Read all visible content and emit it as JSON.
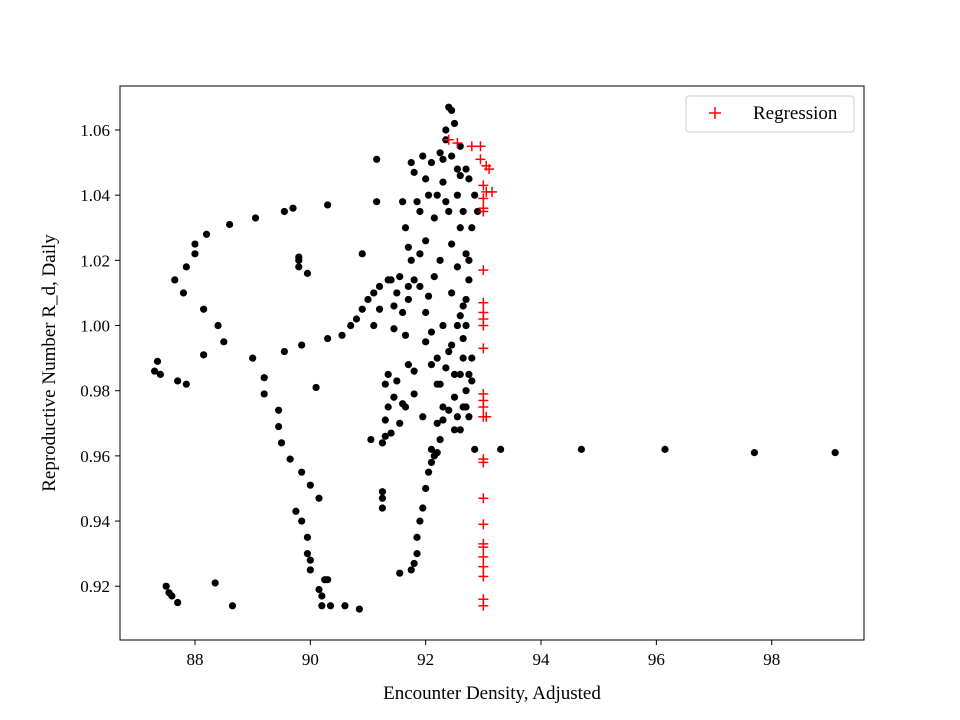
{
  "chart_data": {
    "type": "scatter",
    "title": "",
    "xlabel": "Encounter Density, Adjusted",
    "ylabel": "Reproductive Number R_d, Daily",
    "xlim": [
      86.7,
      99.6
    ],
    "ylim": [
      0.9035,
      1.0735
    ],
    "xticks": [
      88,
      90,
      92,
      94,
      96,
      98
    ],
    "yticks": [
      0.92,
      0.94,
      0.96,
      0.98,
      1.0,
      1.02,
      1.04,
      1.06
    ],
    "ytick_labels": [
      "0.92",
      "0.94",
      "0.96",
      "0.98",
      "1.00",
      "1.02",
      "1.04",
      "1.06"
    ],
    "grid": false,
    "legend": {
      "position": "top-right",
      "entries": [
        "Regression"
      ]
    },
    "colors": {
      "observed": "#000000",
      "regression": "#ff0000",
      "frame": "#000000"
    },
    "series": [
      {
        "marker": "dot",
        "color": "#000000",
        "points": [
          [
            87.3,
            0.986
          ],
          [
            87.35,
            0.989
          ],
          [
            87.4,
            0.985
          ],
          [
            87.5,
            0.92
          ],
          [
            87.55,
            0.918
          ],
          [
            87.6,
            0.917
          ],
          [
            87.7,
            0.915
          ],
          [
            87.65,
            1.014
          ],
          [
            87.7,
            0.983
          ],
          [
            87.8,
            1.01
          ],
          [
            87.85,
            0.982
          ],
          [
            87.85,
            1.018
          ],
          [
            88.0,
            1.022
          ],
          [
            88.0,
            1.025
          ],
          [
            88.15,
            1.005
          ],
          [
            88.15,
            0.991
          ],
          [
            88.2,
            1.028
          ],
          [
            88.35,
            0.921
          ],
          [
            88.4,
            1.0
          ],
          [
            88.5,
            0.995
          ],
          [
            88.6,
            1.031
          ],
          [
            88.65,
            0.914
          ],
          [
            89.0,
            0.99
          ],
          [
            89.05,
            1.033
          ],
          [
            89.2,
            0.984
          ],
          [
            89.2,
            0.979
          ],
          [
            89.45,
            0.974
          ],
          [
            89.45,
            0.969
          ],
          [
            89.5,
            0.964
          ],
          [
            89.55,
            0.992
          ],
          [
            89.55,
            1.035
          ],
          [
            89.65,
            0.959
          ],
          [
            89.7,
            1.036
          ],
          [
            89.8,
            1.021
          ],
          [
            89.8,
            1.02
          ],
          [
            89.8,
            1.018
          ],
          [
            89.85,
            0.955
          ],
          [
            89.85,
            0.994
          ],
          [
            89.95,
            1.016
          ],
          [
            89.75,
            0.943
          ],
          [
            89.85,
            0.94
          ],
          [
            89.95,
            0.935
          ],
          [
            89.95,
            0.93
          ],
          [
            90.0,
            0.925
          ],
          [
            90.0,
            0.928
          ],
          [
            90.0,
            0.951
          ],
          [
            90.15,
            0.919
          ],
          [
            90.1,
            0.981
          ],
          [
            90.15,
            0.947
          ],
          [
            90.2,
            0.917
          ],
          [
            90.2,
            0.914
          ],
          [
            90.25,
            0.922
          ],
          [
            90.3,
            0.922
          ],
          [
            90.3,
            0.996
          ],
          [
            90.3,
            1.037
          ],
          [
            90.35,
            0.914
          ],
          [
            90.55,
            0.997
          ],
          [
            90.6,
            0.914
          ],
          [
            90.7,
            1.0
          ],
          [
            90.8,
            1.002
          ],
          [
            90.85,
            0.913
          ],
          [
            90.9,
            1.005
          ],
          [
            90.9,
            1.022
          ],
          [
            91.0,
            1.008
          ],
          [
            91.05,
            0.965
          ],
          [
            91.1,
            1.01
          ],
          [
            91.15,
            1.051
          ],
          [
            91.15,
            1.038
          ],
          [
            91.2,
            1.012
          ],
          [
            91.25,
            0.964
          ],
          [
            91.25,
            0.949
          ],
          [
            91.25,
            0.947
          ],
          [
            91.3,
            0.966
          ],
          [
            91.3,
            0.971
          ],
          [
            91.25,
            0.944
          ],
          [
            91.35,
            1.014
          ],
          [
            91.35,
            0.975
          ],
          [
            91.4,
            0.967
          ],
          [
            91.45,
            0.999
          ],
          [
            91.45,
            1.006
          ],
          [
            91.5,
            1.01
          ],
          [
            91.55,
            0.924
          ],
          [
            91.6,
            0.976
          ],
          [
            91.65,
            0.997
          ],
          [
            91.7,
            1.012
          ],
          [
            91.75,
            1.05
          ],
          [
            91.75,
            0.925
          ],
          [
            91.8,
            0.927
          ],
          [
            91.8,
            0.986
          ],
          [
            91.85,
            0.93
          ],
          [
            91.85,
            0.935
          ],
          [
            91.9,
            0.94
          ],
          [
            91.95,
            0.944
          ],
          [
            92.0,
            0.95
          ],
          [
            92.05,
            0.955
          ],
          [
            92.1,
            0.958
          ],
          [
            92.15,
            0.96
          ],
          [
            92.2,
            0.961
          ],
          [
            92.25,
            0.965
          ],
          [
            92.3,
            0.971
          ],
          [
            92.3,
            1.0
          ],
          [
            92.35,
            1.06
          ],
          [
            92.4,
            1.067
          ],
          [
            92.45,
            1.066
          ],
          [
            92.5,
            1.062
          ],
          [
            92.6,
            1.055
          ],
          [
            92.7,
            1.048
          ],
          [
            92.75,
            1.045
          ],
          [
            92.85,
            0.962
          ],
          [
            92.4,
            0.992
          ],
          [
            92.5,
            0.985
          ],
          [
            92.5,
            0.978
          ],
          [
            92.55,
            0.972
          ],
          [
            92.6,
            0.968
          ],
          [
            92.45,
            1.025
          ],
          [
            92.55,
            1.018
          ],
          [
            92.45,
            1.01
          ],
          [
            92.6,
            1.03
          ],
          [
            92.55,
            1.04
          ],
          [
            92.6,
            1.003
          ],
          [
            92.65,
            0.996
          ],
          [
            92.65,
            0.99
          ],
          [
            92.7,
            0.98
          ],
          [
            92.7,
            0.975
          ],
          [
            92.75,
            0.972
          ],
          [
            92.8,
            0.983
          ],
          [
            92.7,
            1.008
          ],
          [
            92.75,
            1.014
          ],
          [
            92.7,
            1.022
          ],
          [
            92.65,
            1.035
          ],
          [
            92.7,
            1.0
          ],
          [
            92.6,
            1.046
          ],
          [
            92.55,
            1.048
          ],
          [
            92.45,
            1.052
          ],
          [
            92.25,
            1.053
          ],
          [
            92.1,
            1.05
          ],
          [
            91.95,
            1.052
          ],
          [
            91.8,
            1.047
          ],
          [
            91.6,
            1.038
          ],
          [
            91.65,
            1.03
          ],
          [
            91.75,
            1.02
          ],
          [
            91.9,
            1.012
          ],
          [
            92.0,
            1.004
          ],
          [
            92.1,
            0.998
          ],
          [
            92.2,
            0.99
          ],
          [
            92.25,
            0.982
          ],
          [
            92.3,
            0.975
          ],
          [
            92.2,
            0.97
          ],
          [
            92.1,
            0.962
          ],
          [
            91.95,
            0.972
          ],
          [
            91.8,
            0.979
          ],
          [
            91.7,
            0.988
          ],
          [
            91.65,
            0.975
          ],
          [
            91.55,
            0.97
          ],
          [
            91.45,
            0.978
          ],
          [
            91.5,
            0.983
          ],
          [
            91.6,
            1.004
          ],
          [
            91.7,
            1.008
          ],
          [
            91.8,
            1.014
          ],
          [
            91.9,
            1.022
          ],
          [
            92.0,
            1.026
          ],
          [
            92.15,
            1.033
          ],
          [
            92.2,
            1.04
          ],
          [
            92.3,
            1.044
          ],
          [
            92.35,
            1.038
          ],
          [
            92.4,
            1.035
          ],
          [
            92.25,
            1.02
          ],
          [
            92.15,
            1.015
          ],
          [
            92.05,
            1.009
          ],
          [
            92.0,
            0.995
          ],
          [
            92.1,
            0.988
          ],
          [
            92.2,
            0.982
          ],
          [
            92.35,
            0.987
          ],
          [
            92.45,
            0.994
          ],
          [
            92.55,
            1.0
          ],
          [
            92.65,
            1.006
          ],
          [
            92.75,
            1.02
          ],
          [
            92.8,
            1.03
          ],
          [
            92.85,
            1.04
          ],
          [
            92.9,
            1.035
          ],
          [
            92.8,
            0.99
          ],
          [
            92.75,
            0.985
          ],
          [
            92.65,
            0.975
          ],
          [
            92.6,
            0.985
          ],
          [
            92.5,
            0.968
          ],
          [
            92.4,
            0.974
          ],
          [
            91.9,
            1.035
          ],
          [
            92.0,
            1.045
          ],
          [
            92.05,
            1.04
          ],
          [
            91.85,
            1.038
          ],
          [
            91.7,
            1.024
          ],
          [
            91.55,
            1.015
          ],
          [
            91.4,
            1.014
          ],
          [
            91.2,
            1.005
          ],
          [
            91.1,
            1.0
          ],
          [
            91.3,
            0.982
          ],
          [
            91.35,
            0.985
          ],
          [
            92.35,
            1.057
          ],
          [
            92.3,
            1.051
          ]
        ]
      },
      {
        "marker": "dot",
        "color": "#000000",
        "points": [
          [
            93.3,
            0.962
          ],
          [
            94.7,
            0.962
          ],
          [
            96.15,
            0.962
          ],
          [
            97.7,
            0.961
          ],
          [
            99.1,
            0.961
          ]
        ]
      },
      {
        "name": "Regression",
        "marker": "plus",
        "color": "#ff0000",
        "points": [
          [
            92.4,
            1.057
          ],
          [
            92.55,
            1.056
          ],
          [
            92.8,
            1.055
          ],
          [
            92.95,
            1.055
          ],
          [
            92.95,
            1.051
          ],
          [
            93.05,
            1.049
          ],
          [
            93.1,
            1.048
          ],
          [
            93.0,
            1.043
          ],
          [
            93.05,
            1.041
          ],
          [
            93.15,
            1.041
          ],
          [
            93.0,
            1.039
          ],
          [
            93.0,
            1.036
          ],
          [
            93.0,
            1.035
          ],
          [
            93.0,
            1.017
          ],
          [
            93.0,
            1.007
          ],
          [
            93.0,
            1.004
          ],
          [
            93.0,
            1.002
          ],
          [
            93.0,
            1.0
          ],
          [
            93.0,
            0.993
          ],
          [
            93.0,
            0.979
          ],
          [
            93.0,
            0.977
          ],
          [
            93.0,
            0.975
          ],
          [
            93.0,
            0.972
          ],
          [
            93.05,
            0.972
          ],
          [
            93.0,
            0.959
          ],
          [
            93.0,
            0.958
          ],
          [
            93.0,
            0.947
          ],
          [
            93.0,
            0.939
          ],
          [
            93.0,
            0.933
          ],
          [
            93.0,
            0.932
          ],
          [
            93.0,
            0.929
          ],
          [
            93.0,
            0.926
          ],
          [
            93.0,
            0.923
          ],
          [
            93.0,
            0.916
          ],
          [
            93.0,
            0.914
          ]
        ]
      }
    ]
  }
}
